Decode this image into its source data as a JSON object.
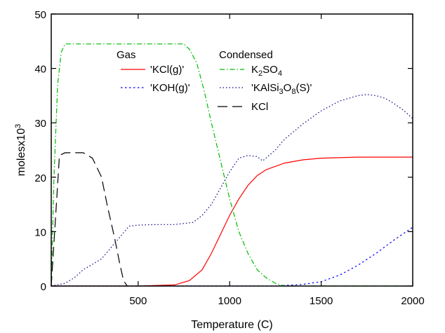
{
  "chart_data": {
    "type": "line",
    "xlabel": "Temperature (C)",
    "ylabel_parts": [
      "molesx10",
      "3"
    ],
    "xlim": [
      25,
      2000
    ],
    "ylim": [
      0,
      50
    ],
    "x_ticks": [
      500,
      1000,
      1500,
      2000
    ],
    "y_ticks": [
      0,
      10,
      20,
      30,
      40,
      50
    ],
    "legend": {
      "placement": "top-center",
      "gas_header": "Gas",
      "condensed_header": "Condensed"
    },
    "series": [
      {
        "name": "'KCl(g)'",
        "group": "gas",
        "color": "#ff0000",
        "dash": "solid",
        "x": [
          25,
          500,
          700,
          780,
          850,
          900,
          950,
          1000,
          1050,
          1100,
          1150,
          1200,
          1300,
          1400,
          1500,
          1700,
          2000
        ],
        "y": [
          0,
          0,
          0.2,
          1,
          3,
          6,
          9.5,
          13,
          16,
          18.5,
          20.3,
          21.4,
          22.6,
          23.2,
          23.5,
          23.7,
          23.7
        ]
      },
      {
        "name": "'KOH(g)'",
        "group": "gas",
        "color": "#0000ff",
        "dash": "dashed",
        "x": [
          25,
          700,
          1000,
          1150,
          1250,
          1400,
          1500,
          1600,
          1700,
          1800,
          1900,
          2000
        ],
        "y": [
          0,
          0,
          0,
          0,
          0,
          0.3,
          0.8,
          2,
          3.8,
          6,
          8.5,
          10.8
        ]
      },
      {
        "name": "KCl",
        "group": "condensed",
        "color": "#000000",
        "dash": "longdash",
        "x": [
          25,
          70,
          100,
          150,
          200,
          250,
          300,
          330,
          370,
          400,
          420,
          440
        ],
        "y": [
          0,
          24,
          24.5,
          24.5,
          24.5,
          23.5,
          20,
          15,
          9,
          4,
          1,
          0
        ]
      },
      {
        "name": "K2SO4",
        "label_parts": [
          "K",
          "2",
          "SO",
          "4"
        ],
        "group": "condensed",
        "color": "#00bb00",
        "dash": "dashdot",
        "x": [
          25,
          40,
          60,
          80,
          100,
          200,
          400,
          600,
          750,
          780,
          820,
          860,
          900,
          950,
          1000,
          1050,
          1100,
          1150,
          1200,
          1250,
          1300,
          1400,
          2000
        ],
        "y": [
          0,
          20,
          37,
          43,
          44.5,
          44.5,
          44.5,
          44.5,
          44.5,
          43.5,
          41,
          36,
          30,
          23,
          16,
          10,
          6,
          3,
          1.5,
          0.5,
          0,
          0,
          0
        ]
      },
      {
        "name": "'KAlSi3O8(S)'",
        "label_parts": [
          "'KAlSi",
          "3",
          "O",
          "8",
          "(S)'"
        ],
        "group": "condensed",
        "color": "#000080",
        "dash": "dotted",
        "x": [
          25,
          100,
          150,
          200,
          250,
          300,
          350,
          400,
          450,
          500,
          600,
          700,
          800,
          850,
          900,
          950,
          1000,
          1050,
          1100,
          1150,
          1180,
          1250,
          1300,
          1400,
          1500,
          1600,
          1700,
          1750,
          1800,
          1850,
          1900,
          1950,
          2000
        ],
        "y": [
          0,
          0.5,
          1.5,
          3,
          4,
          5,
          7,
          9,
          11,
          11.2,
          11.3,
          11.3,
          11.7,
          13,
          15,
          18,
          21,
          23.5,
          24,
          23.8,
          23,
          25,
          27,
          29.8,
          32.2,
          34,
          35,
          35.2,
          35,
          34.5,
          33.5,
          32.3,
          30.8
        ]
      }
    ]
  }
}
